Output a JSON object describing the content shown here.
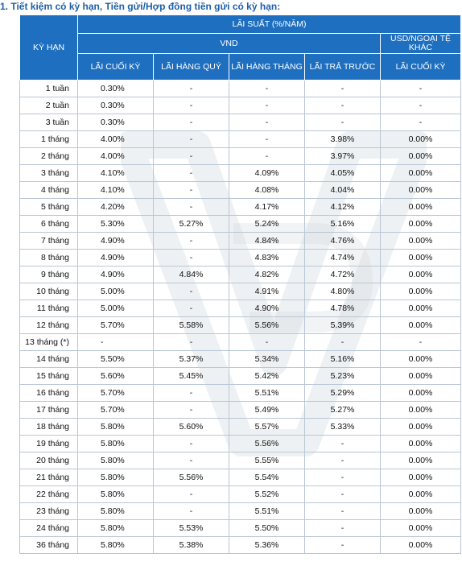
{
  "heading": "1. Tiết kiệm có kỳ hạn, Tiền gửi/Hợp đồng tiền gửi có kỳ hạn:",
  "table": {
    "term_header": "KỲ HẠN",
    "rate_group_header": "LÃI SUẤT (%/NĂM)",
    "vnd_header": "VND",
    "usd_header": "USD/NGOẠI TỆ KHÁC",
    "columns": [
      "LÃI CUỐI KỲ",
      "LÃI HÀNG QUÝ",
      "LÃI HÀNG THÁNG",
      "LÃI TRẢ TRƯỚC",
      "LÃI CUỐI KỲ"
    ],
    "rows": [
      {
        "term": "1 tuần",
        "values": [
          "0.30%",
          "-",
          "-",
          "-",
          "-"
        ]
      },
      {
        "term": "2 tuần",
        "values": [
          "0.30%",
          "-",
          "-",
          "-",
          "-"
        ]
      },
      {
        "term": "3 tuần",
        "values": [
          "0.30%",
          "-",
          "-",
          "-",
          "-"
        ]
      },
      {
        "term": "1 tháng",
        "values": [
          "4.00%",
          "-",
          "-",
          "3.98%",
          "0.00%"
        ]
      },
      {
        "term": "2 tháng",
        "values": [
          "4.00%",
          "-",
          "-",
          "3.97%",
          "0.00%"
        ]
      },
      {
        "term": "3 tháng",
        "values": [
          "4.10%",
          "-",
          "4.09%",
          "4.05%",
          "0.00%"
        ]
      },
      {
        "term": "4 tháng",
        "values": [
          "4.10%",
          "-",
          "4.08%",
          "4.04%",
          "0.00%"
        ]
      },
      {
        "term": "5 tháng",
        "values": [
          "4.20%",
          "-",
          "4.17%",
          "4.12%",
          "0.00%"
        ]
      },
      {
        "term": "6 tháng",
        "values": [
          "5.30%",
          "5.27%",
          "5.24%",
          "5.16%",
          "0.00%"
        ]
      },
      {
        "term": "7 tháng",
        "values": [
          "4.90%",
          "-",
          "4.84%",
          "4.76%",
          "0.00%"
        ]
      },
      {
        "term": "8 tháng",
        "values": [
          "4.90%",
          "-",
          "4.83%",
          "4.74%",
          "0.00%"
        ]
      },
      {
        "term": "9 tháng",
        "values": [
          "4.90%",
          "4.84%",
          "4.82%",
          "4.72%",
          "0.00%"
        ]
      },
      {
        "term": "10 tháng",
        "values": [
          "5.00%",
          "-",
          "4.91%",
          "4.80%",
          "0.00%"
        ]
      },
      {
        "term": "11 tháng",
        "values": [
          "5.00%",
          "-",
          "4.90%",
          "4.78%",
          "0.00%"
        ]
      },
      {
        "term": "12 tháng",
        "values": [
          "5.70%",
          "5.58%",
          "5.56%",
          "5.39%",
          "0.00%"
        ]
      },
      {
        "term": "13 tháng (*)",
        "values": [
          "-",
          "-",
          "-",
          "-",
          "-"
        ]
      },
      {
        "term": "14 tháng",
        "values": [
          "5.50%",
          "5.37%",
          "5.34%",
          "5.16%",
          "0.00%"
        ]
      },
      {
        "term": "15 tháng",
        "values": [
          "5.60%",
          "5.45%",
          "5.42%",
          "5.23%",
          "0.00%"
        ]
      },
      {
        "term": "16 tháng",
        "values": [
          "5.70%",
          "-",
          "5.51%",
          "5.29%",
          "0.00%"
        ]
      },
      {
        "term": "17 tháng",
        "values": [
          "5.70%",
          "-",
          "5.49%",
          "5.27%",
          "0.00%"
        ]
      },
      {
        "term": "18 tháng",
        "values": [
          "5.80%",
          "5.60%",
          "5.57%",
          "5.33%",
          "0.00%"
        ]
      },
      {
        "term": "19 tháng",
        "values": [
          "5.80%",
          "-",
          "5.56%",
          "-",
          "0.00%"
        ]
      },
      {
        "term": "20 tháng",
        "values": [
          "5.80%",
          "-",
          "5.55%",
          "-",
          "0.00%"
        ]
      },
      {
        "term": "21 tháng",
        "values": [
          "5.80%",
          "5.56%",
          "5.54%",
          "-",
          "0.00%"
        ]
      },
      {
        "term": "22 tháng",
        "values": [
          "5.80%",
          "-",
          "5.52%",
          "-",
          "0.00%"
        ]
      },
      {
        "term": "23 tháng",
        "values": [
          "5.80%",
          "-",
          "5.51%",
          "-",
          "0.00%"
        ]
      },
      {
        "term": "24 tháng",
        "values": [
          "5.80%",
          "5.53%",
          "5.50%",
          "-",
          "0.00%"
        ]
      },
      {
        "term": "36 tháng",
        "values": [
          "5.80%",
          "5.38%",
          "5.36%",
          "-",
          "0.00%"
        ]
      }
    ]
  },
  "colors": {
    "header_bg": "#1e6fc0",
    "header_text": "#ffffff",
    "heading_text": "#1f5fa8",
    "grid": "#b9c6d6"
  }
}
